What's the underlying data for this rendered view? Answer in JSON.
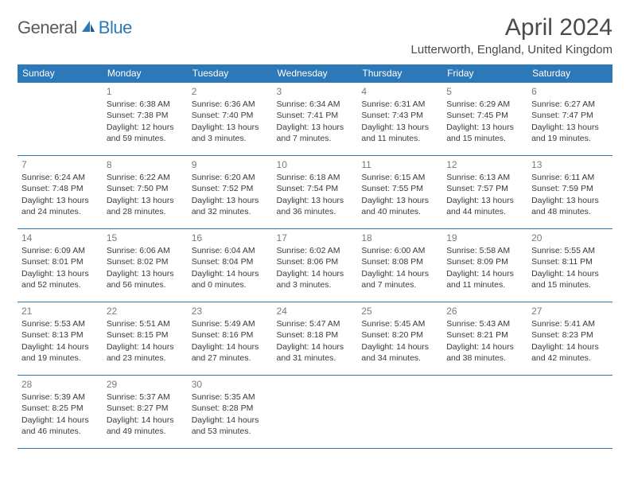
{
  "logo": {
    "text1": "General",
    "text2": "Blue"
  },
  "title": "April 2024",
  "location": "Lutterworth, England, United Kingdom",
  "colors": {
    "header_bg": "#2d78b8",
    "text": "#3a3a3a",
    "daynum": "#7a7a7a"
  },
  "days_of_week": [
    "Sunday",
    "Monday",
    "Tuesday",
    "Wednesday",
    "Thursday",
    "Friday",
    "Saturday"
  ],
  "weeks": [
    [
      null,
      {
        "n": "1",
        "sr": "Sunrise: 6:38 AM",
        "ss": "Sunset: 7:38 PM",
        "d1": "Daylight: 12 hours",
        "d2": "and 59 minutes."
      },
      {
        "n": "2",
        "sr": "Sunrise: 6:36 AM",
        "ss": "Sunset: 7:40 PM",
        "d1": "Daylight: 13 hours",
        "d2": "and 3 minutes."
      },
      {
        "n": "3",
        "sr": "Sunrise: 6:34 AM",
        "ss": "Sunset: 7:41 PM",
        "d1": "Daylight: 13 hours",
        "d2": "and 7 minutes."
      },
      {
        "n": "4",
        "sr": "Sunrise: 6:31 AM",
        "ss": "Sunset: 7:43 PM",
        "d1": "Daylight: 13 hours",
        "d2": "and 11 minutes."
      },
      {
        "n": "5",
        "sr": "Sunrise: 6:29 AM",
        "ss": "Sunset: 7:45 PM",
        "d1": "Daylight: 13 hours",
        "d2": "and 15 minutes."
      },
      {
        "n": "6",
        "sr": "Sunrise: 6:27 AM",
        "ss": "Sunset: 7:47 PM",
        "d1": "Daylight: 13 hours",
        "d2": "and 19 minutes."
      }
    ],
    [
      {
        "n": "7",
        "sr": "Sunrise: 6:24 AM",
        "ss": "Sunset: 7:48 PM",
        "d1": "Daylight: 13 hours",
        "d2": "and 24 minutes."
      },
      {
        "n": "8",
        "sr": "Sunrise: 6:22 AM",
        "ss": "Sunset: 7:50 PM",
        "d1": "Daylight: 13 hours",
        "d2": "and 28 minutes."
      },
      {
        "n": "9",
        "sr": "Sunrise: 6:20 AM",
        "ss": "Sunset: 7:52 PM",
        "d1": "Daylight: 13 hours",
        "d2": "and 32 minutes."
      },
      {
        "n": "10",
        "sr": "Sunrise: 6:18 AM",
        "ss": "Sunset: 7:54 PM",
        "d1": "Daylight: 13 hours",
        "d2": "and 36 minutes."
      },
      {
        "n": "11",
        "sr": "Sunrise: 6:15 AM",
        "ss": "Sunset: 7:55 PM",
        "d1": "Daylight: 13 hours",
        "d2": "and 40 minutes."
      },
      {
        "n": "12",
        "sr": "Sunrise: 6:13 AM",
        "ss": "Sunset: 7:57 PM",
        "d1": "Daylight: 13 hours",
        "d2": "and 44 minutes."
      },
      {
        "n": "13",
        "sr": "Sunrise: 6:11 AM",
        "ss": "Sunset: 7:59 PM",
        "d1": "Daylight: 13 hours",
        "d2": "and 48 minutes."
      }
    ],
    [
      {
        "n": "14",
        "sr": "Sunrise: 6:09 AM",
        "ss": "Sunset: 8:01 PM",
        "d1": "Daylight: 13 hours",
        "d2": "and 52 minutes."
      },
      {
        "n": "15",
        "sr": "Sunrise: 6:06 AM",
        "ss": "Sunset: 8:02 PM",
        "d1": "Daylight: 13 hours",
        "d2": "and 56 minutes."
      },
      {
        "n": "16",
        "sr": "Sunrise: 6:04 AM",
        "ss": "Sunset: 8:04 PM",
        "d1": "Daylight: 14 hours",
        "d2": "and 0 minutes."
      },
      {
        "n": "17",
        "sr": "Sunrise: 6:02 AM",
        "ss": "Sunset: 8:06 PM",
        "d1": "Daylight: 14 hours",
        "d2": "and 3 minutes."
      },
      {
        "n": "18",
        "sr": "Sunrise: 6:00 AM",
        "ss": "Sunset: 8:08 PM",
        "d1": "Daylight: 14 hours",
        "d2": "and 7 minutes."
      },
      {
        "n": "19",
        "sr": "Sunrise: 5:58 AM",
        "ss": "Sunset: 8:09 PM",
        "d1": "Daylight: 14 hours",
        "d2": "and 11 minutes."
      },
      {
        "n": "20",
        "sr": "Sunrise: 5:55 AM",
        "ss": "Sunset: 8:11 PM",
        "d1": "Daylight: 14 hours",
        "d2": "and 15 minutes."
      }
    ],
    [
      {
        "n": "21",
        "sr": "Sunrise: 5:53 AM",
        "ss": "Sunset: 8:13 PM",
        "d1": "Daylight: 14 hours",
        "d2": "and 19 minutes."
      },
      {
        "n": "22",
        "sr": "Sunrise: 5:51 AM",
        "ss": "Sunset: 8:15 PM",
        "d1": "Daylight: 14 hours",
        "d2": "and 23 minutes."
      },
      {
        "n": "23",
        "sr": "Sunrise: 5:49 AM",
        "ss": "Sunset: 8:16 PM",
        "d1": "Daylight: 14 hours",
        "d2": "and 27 minutes."
      },
      {
        "n": "24",
        "sr": "Sunrise: 5:47 AM",
        "ss": "Sunset: 8:18 PM",
        "d1": "Daylight: 14 hours",
        "d2": "and 31 minutes."
      },
      {
        "n": "25",
        "sr": "Sunrise: 5:45 AM",
        "ss": "Sunset: 8:20 PM",
        "d1": "Daylight: 14 hours",
        "d2": "and 34 minutes."
      },
      {
        "n": "26",
        "sr": "Sunrise: 5:43 AM",
        "ss": "Sunset: 8:21 PM",
        "d1": "Daylight: 14 hours",
        "d2": "and 38 minutes."
      },
      {
        "n": "27",
        "sr": "Sunrise: 5:41 AM",
        "ss": "Sunset: 8:23 PM",
        "d1": "Daylight: 14 hours",
        "d2": "and 42 minutes."
      }
    ],
    [
      {
        "n": "28",
        "sr": "Sunrise: 5:39 AM",
        "ss": "Sunset: 8:25 PM",
        "d1": "Daylight: 14 hours",
        "d2": "and 46 minutes."
      },
      {
        "n": "29",
        "sr": "Sunrise: 5:37 AM",
        "ss": "Sunset: 8:27 PM",
        "d1": "Daylight: 14 hours",
        "d2": "and 49 minutes."
      },
      {
        "n": "30",
        "sr": "Sunrise: 5:35 AM",
        "ss": "Sunset: 8:28 PM",
        "d1": "Daylight: 14 hours",
        "d2": "and 53 minutes."
      },
      null,
      null,
      null,
      null
    ]
  ]
}
